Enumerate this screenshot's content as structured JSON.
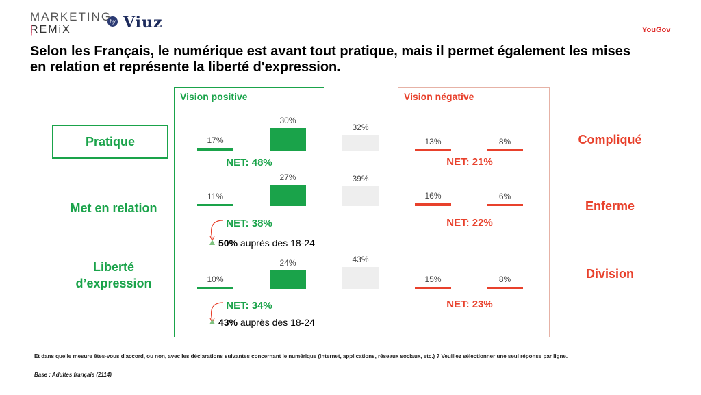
{
  "brand": {
    "line1": "MARKETING",
    "line2": "REMiX",
    "by": "by",
    "partner": "Viuz",
    "source_logo": "YouGov"
  },
  "title": "Selon les Français, le numérique est avant tout pratique, mais il permet également les mises en relation et représente la liberté d'expression.",
  "panels": {
    "positive": "Vision positive",
    "negative": "Vision négative"
  },
  "rows": [
    {
      "positive_label": "Pratique",
      "negative_label": "Compliqué",
      "positive_net": "NET: 48%",
      "negative_net": "NET: 21%",
      "sub_value": "",
      "sub_text": ""
    },
    {
      "positive_label": "Met en relation",
      "negative_label": "Enferme",
      "positive_net": "NET: 38%",
      "negative_net": "NET: 22%",
      "sub_value": "50%",
      "sub_text": " auprès des 18-24"
    },
    {
      "positive_label_1": "Liberté",
      "positive_label_2": "d’expression",
      "negative_label": "Division",
      "positive_net": "NET: 34%",
      "negative_net": "NET: 23%",
      "sub_value": "43%",
      "sub_text": " auprès des 18-24"
    }
  ],
  "chart_data": {
    "type": "bar",
    "categories": [
      "Pratique / Compliqué",
      "Met en relation / Enferme",
      "Liberté d’expression / Division"
    ],
    "series": [
      {
        "values": [
          17,
          11,
          10
        ],
        "color": "#1aa34a"
      },
      {
        "values": [
          30,
          27,
          24
        ],
        "color": "#1aa34a"
      },
      {
        "values": [
          32,
          39,
          43
        ],
        "color": "#eeeeee"
      },
      {
        "values": [
          13,
          16,
          15
        ],
        "color": "#e8412c"
      },
      {
        "values": [
          8,
          6,
          8
        ],
        "color": "#e8412c"
      }
    ],
    "labels": [
      [
        "17%",
        "30%",
        "32%",
        "13%",
        "8%"
      ],
      [
        "11%",
        "27%",
        "39%",
        "16%",
        "6%"
      ],
      [
        "10%",
        "24%",
        "43%",
        "15%",
        "8%"
      ]
    ]
  },
  "footnote": "Et dans quelle mesure êtes-vous d'accord, ou non, avec les déclarations suivantes concernant le numérique (internet, applications, réseaux sociaux, etc.) ? Veuillez sélectionner une seul réponse par ligne.",
  "base": "Base : Adultes français (2114)"
}
